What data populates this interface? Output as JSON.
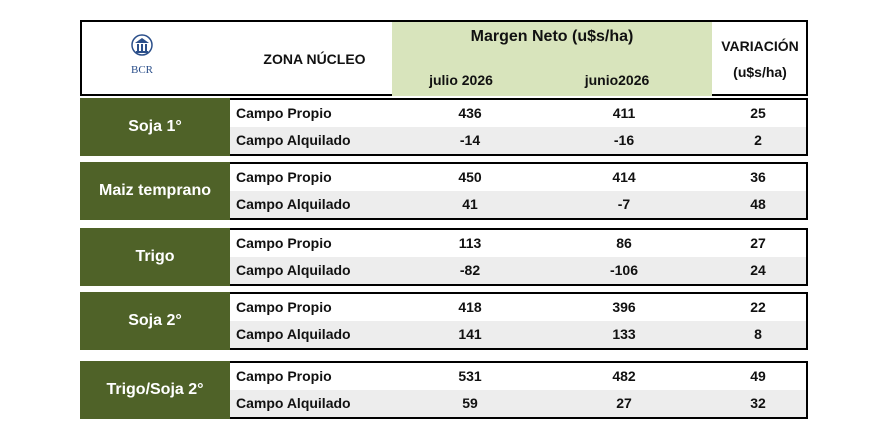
{
  "header": {
    "logo_text": "BCR",
    "zona": "ZONA NÚCLEO",
    "margen_title": "Margen Neto (u$s/ha)",
    "month1": "julio 2026",
    "month2": "junio2026",
    "variacion_line1": "VARIACIÓN",
    "variacion_line2": "(u$s/ha)"
  },
  "colors": {
    "label_bg": "#4f6228",
    "header_band": "#d8e4bc",
    "alt_row": "#ededed"
  },
  "groups": [
    {
      "label": "Soja 1°",
      "rows": [
        {
          "label": "Campo Propio",
          "julio": "436",
          "junio": "411",
          "variacion": "25"
        },
        {
          "label": "Campo Alquilado",
          "julio": "-14",
          "junio": "-16",
          "variacion": "2"
        }
      ]
    },
    {
      "label": "Maiz temprano",
      "rows": [
        {
          "label": "Campo Propio",
          "julio": "450",
          "junio": "414",
          "variacion": "36"
        },
        {
          "label": "Campo Alquilado",
          "julio": "41",
          "junio": "-7",
          "variacion": "48"
        }
      ]
    },
    {
      "label": "Trigo",
      "rows": [
        {
          "label": "Campo Propio",
          "julio": "113",
          "junio": "86",
          "variacion": "27"
        },
        {
          "label": "Campo Alquilado",
          "julio": "-82",
          "junio": "-106",
          "variacion": "24"
        }
      ]
    },
    {
      "label": "Soja 2°",
      "rows": [
        {
          "label": "Campo Propio",
          "julio": "418",
          "junio": "396",
          "variacion": "22"
        },
        {
          "label": "Campo Alquilado",
          "julio": "141",
          "junio": "133",
          "variacion": "8"
        }
      ]
    },
    {
      "label": "Trigo/Soja 2°",
      "rows": [
        {
          "label": "Campo Propio",
          "julio": "531",
          "junio": "482",
          "variacion": "49"
        },
        {
          "label": "Campo Alquilado",
          "julio": "59",
          "junio": "27",
          "variacion": "32"
        }
      ]
    }
  ]
}
